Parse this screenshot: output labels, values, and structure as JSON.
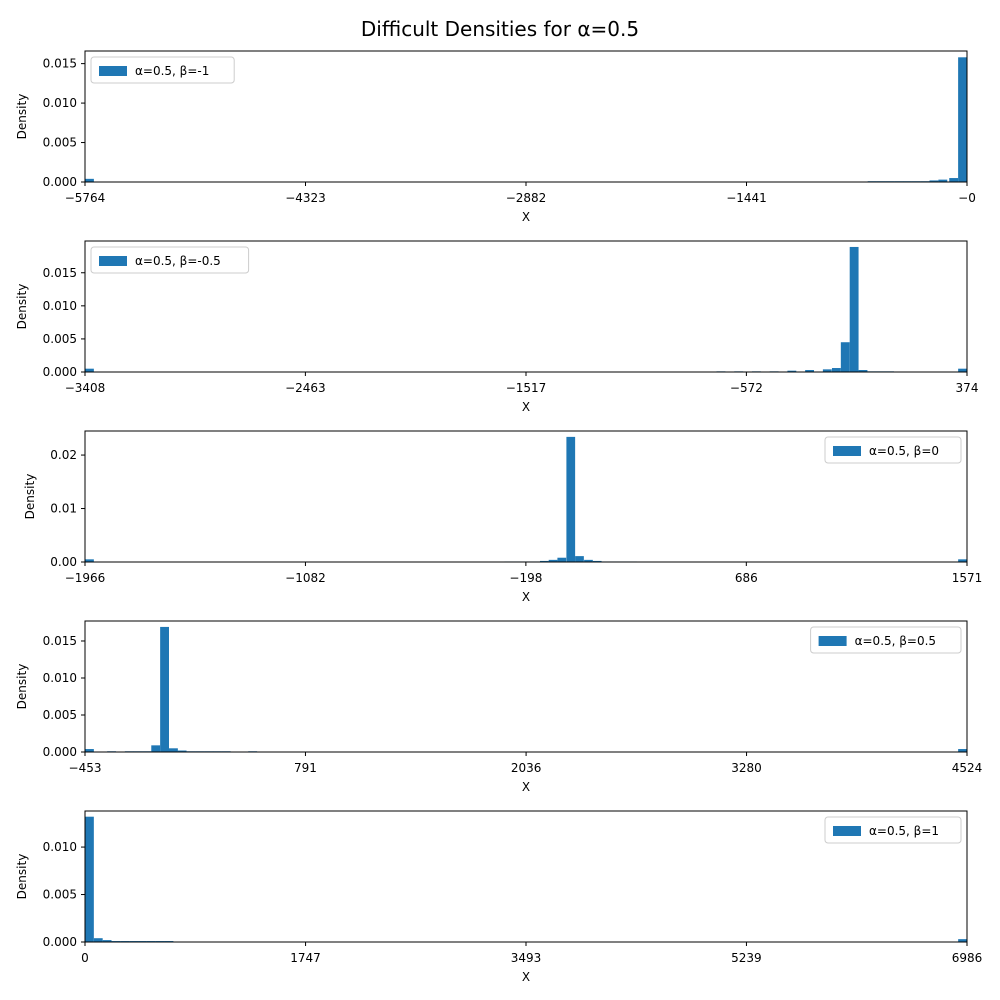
{
  "figure": {
    "title": "Difficult Densities for α=0.5"
  },
  "colors": {
    "bar": "#1f77b4",
    "axes": "#000000",
    "background": "#ffffff",
    "legend_border": "#cccccc"
  },
  "chart_data": [
    {
      "type": "bar",
      "subtype": "histogram",
      "xlabel": "X",
      "ylabel": "Density",
      "xlim": [
        -5764,
        0
      ],
      "ylim": [
        0,
        0.0166
      ],
      "xticks": [
        -5764,
        -4323,
        -2882,
        -1441,
        0
      ],
      "xtick_labels": [
        "−5764",
        "−4323",
        "−2882",
        "−1441",
        "−0"
      ],
      "yticks": [
        0,
        0.005,
        0.01,
        0.015
      ],
      "ytick_labels": [
        "0.000",
        "0.005",
        "0.010",
        "0.015"
      ],
      "legend": {
        "label": "α=0.5, β=-1",
        "placement": "upper left"
      },
      "grid": false,
      "bins": [
        {
          "x": -5735,
          "width": 58,
          "value": 0.0004
        },
        {
          "x": -620,
          "width": 58,
          "value": 0.0001
        },
        {
          "x": -562,
          "width": 58,
          "value": 0.0001
        },
        {
          "x": -504,
          "width": 58,
          "value": 0.0001
        },
        {
          "x": -446,
          "width": 58,
          "value": 0.0001
        },
        {
          "x": -389,
          "width": 58,
          "value": 0.0001
        },
        {
          "x": -331,
          "width": 58,
          "value": 0.0001
        },
        {
          "x": -273,
          "width": 58,
          "value": 0.0001
        },
        {
          "x": -216,
          "width": 58,
          "value": 0.0002
        },
        {
          "x": -158,
          "width": 58,
          "value": 0.0003
        },
        {
          "x": -87,
          "width": 58,
          "value": 0.0005
        },
        {
          "x": -29,
          "width": 58,
          "value": 0.0158
        }
      ]
    },
    {
      "type": "bar",
      "subtype": "histogram",
      "xlabel": "X",
      "ylabel": "Density",
      "xlim": [
        -3408,
        374
      ],
      "ylim": [
        0,
        0.0198
      ],
      "xticks": [
        -3408,
        -2463,
        -1517,
        -572,
        374
      ],
      "xtick_labels": [
        "−3408",
        "−2463",
        "−1517",
        "−572",
        "374"
      ],
      "yticks": [
        0,
        0.005,
        0.01,
        0.015
      ],
      "ytick_labels": [
        "0.000",
        "0.005",
        "0.010",
        "0.015"
      ],
      "legend": {
        "label": "α=0.5, β=-0.5",
        "placement": "upper left"
      },
      "grid": false,
      "bins": [
        {
          "x": -3389,
          "width": 38,
          "value": 0.0005
        },
        {
          "x": -681,
          "width": 38,
          "value": 0.0001
        },
        {
          "x": -605,
          "width": 38,
          "value": 0.0001
        },
        {
          "x": -529,
          "width": 38,
          "value": 0.0001
        },
        {
          "x": -453,
          "width": 38,
          "value": 0.0001
        },
        {
          "x": -377,
          "width": 38,
          "value": 0.0002
        },
        {
          "x": -301,
          "width": 38,
          "value": 0.0003
        },
        {
          "x": -225,
          "width": 38,
          "value": 0.0004
        },
        {
          "x": -186,
          "width": 38,
          "value": 0.0006
        },
        {
          "x": -148,
          "width": 38,
          "value": 0.0045
        },
        {
          "x": -110,
          "width": 38,
          "value": 0.0189
        },
        {
          "x": -72,
          "width": 38,
          "value": 0.0003
        },
        {
          "x": -34,
          "width": 38,
          "value": 0.0001
        },
        {
          "x": 4,
          "width": 38,
          "value": 0.0001
        },
        {
          "x": 42,
          "width": 38,
          "value": 0.0001
        },
        {
          "x": 355,
          "width": 38,
          "value": 0.0005
        }
      ]
    },
    {
      "type": "bar",
      "subtype": "histogram",
      "xlabel": "X",
      "ylabel": "Density",
      "xlim": [
        -1966,
        1571
      ],
      "ylim": [
        0,
        0.0245
      ],
      "xticks": [
        -1966,
        -1082,
        -198,
        686,
        1571
      ],
      "xtick_labels": [
        "−1966",
        "−1082",
        "−198",
        "686",
        "1571"
      ],
      "yticks": [
        0,
        0.01,
        0.02
      ],
      "ytick_labels": [
        "0.00",
        "0.01",
        "0.02"
      ],
      "legend": {
        "label": "α=0.5, β=0",
        "placement": "upper right"
      },
      "grid": false,
      "bins": [
        {
          "x": -1948,
          "width": 35,
          "value": 0.0005
        },
        {
          "x": -266,
          "width": 35,
          "value": 0.0001
        },
        {
          "x": -231,
          "width": 35,
          "value": 0.0001
        },
        {
          "x": -195,
          "width": 35,
          "value": 0.0001
        },
        {
          "x": -160,
          "width": 35,
          "value": 0.0001
        },
        {
          "x": -124,
          "width": 35,
          "value": 0.0002
        },
        {
          "x": -89,
          "width": 35,
          "value": 0.0004
        },
        {
          "x": -54,
          "width": 35,
          "value": 0.0008
        },
        {
          "x": -18,
          "width": 35,
          "value": 0.0234
        },
        {
          "x": 17,
          "width": 35,
          "value": 0.0011
        },
        {
          "x": 53,
          "width": 35,
          "value": 0.0004
        },
        {
          "x": 88,
          "width": 35,
          "value": 0.0002
        },
        {
          "x": 124,
          "width": 35,
          "value": 0.0001
        },
        {
          "x": 159,
          "width": 35,
          "value": 0.0001
        },
        {
          "x": 195,
          "width": 35,
          "value": 0.0001
        },
        {
          "x": 230,
          "width": 35,
          "value": 0.0001
        },
        {
          "x": 1553,
          "width": 35,
          "value": 0.0005
        }
      ]
    },
    {
      "type": "bar",
      "subtype": "histogram",
      "xlabel": "X",
      "ylabel": "Density",
      "xlim": [
        -453,
        4524
      ],
      "ylim": [
        0,
        0.0177
      ],
      "xticks": [
        -453,
        791,
        2036,
        3280,
        4524
      ],
      "xtick_labels": [
        "−453",
        "791",
        "2036",
        "3280",
        "4524"
      ],
      "yticks": [
        0,
        0.005,
        0.01,
        0.015
      ],
      "ytick_labels": [
        "0.000",
        "0.005",
        "0.010",
        "0.015"
      ],
      "legend": {
        "label": "α=0.5, β=0.5",
        "placement": "upper right"
      },
      "grid": false,
      "bins": [
        {
          "x": -428,
          "width": 50,
          "value": 0.0004
        },
        {
          "x": -303,
          "width": 50,
          "value": 0.0001
        },
        {
          "x": -203,
          "width": 50,
          "value": 0.0001
        },
        {
          "x": -154,
          "width": 50,
          "value": 0.0001
        },
        {
          "x": -104,
          "width": 50,
          "value": 0.0001
        },
        {
          "x": -54,
          "width": 50,
          "value": 0.0009
        },
        {
          "x": -4,
          "width": 50,
          "value": 0.0169
        },
        {
          "x": 46,
          "width": 50,
          "value": 0.0005
        },
        {
          "x": 95,
          "width": 50,
          "value": 0.0002
        },
        {
          "x": 145,
          "width": 50,
          "value": 0.0001
        },
        {
          "x": 195,
          "width": 50,
          "value": 0.0001
        },
        {
          "x": 245,
          "width": 50,
          "value": 0.0001
        },
        {
          "x": 294,
          "width": 50,
          "value": 0.0001
        },
        {
          "x": 344,
          "width": 50,
          "value": 0.0001
        },
        {
          "x": 493,
          "width": 50,
          "value": 0.0001
        },
        {
          "x": 4499,
          "width": 50,
          "value": 0.0004
        }
      ]
    },
    {
      "type": "bar",
      "subtype": "histogram",
      "xlabel": "X",
      "ylabel": "Density",
      "xlim": [
        0,
        6986
      ],
      "ylim": [
        0,
        0.0138
      ],
      "xticks": [
        0,
        1747,
        3493,
        5239,
        6986
      ],
      "xtick_labels": [
        "0",
        "1747",
        "3493",
        "5239",
        "6986"
      ],
      "yticks": [
        0,
        0.005,
        0.01
      ],
      "ytick_labels": [
        "0.000",
        "0.005",
        "0.010"
      ],
      "legend": {
        "label": "α=0.5, β=1",
        "placement": "upper right"
      },
      "grid": false,
      "bins": [
        {
          "x": 35,
          "width": 70,
          "value": 0.0132
        },
        {
          "x": 105,
          "width": 70,
          "value": 0.0004
        },
        {
          "x": 175,
          "width": 70,
          "value": 0.0002
        },
        {
          "x": 245,
          "width": 70,
          "value": 0.0001
        },
        {
          "x": 315,
          "width": 70,
          "value": 0.0001
        },
        {
          "x": 385,
          "width": 70,
          "value": 0.0001
        },
        {
          "x": 455,
          "width": 70,
          "value": 0.0001
        },
        {
          "x": 525,
          "width": 70,
          "value": 0.0001
        },
        {
          "x": 595,
          "width": 70,
          "value": 0.0001
        },
        {
          "x": 665,
          "width": 70,
          "value": 0.0001
        },
        {
          "x": 6951,
          "width": 70,
          "value": 0.0003
        }
      ]
    }
  ]
}
